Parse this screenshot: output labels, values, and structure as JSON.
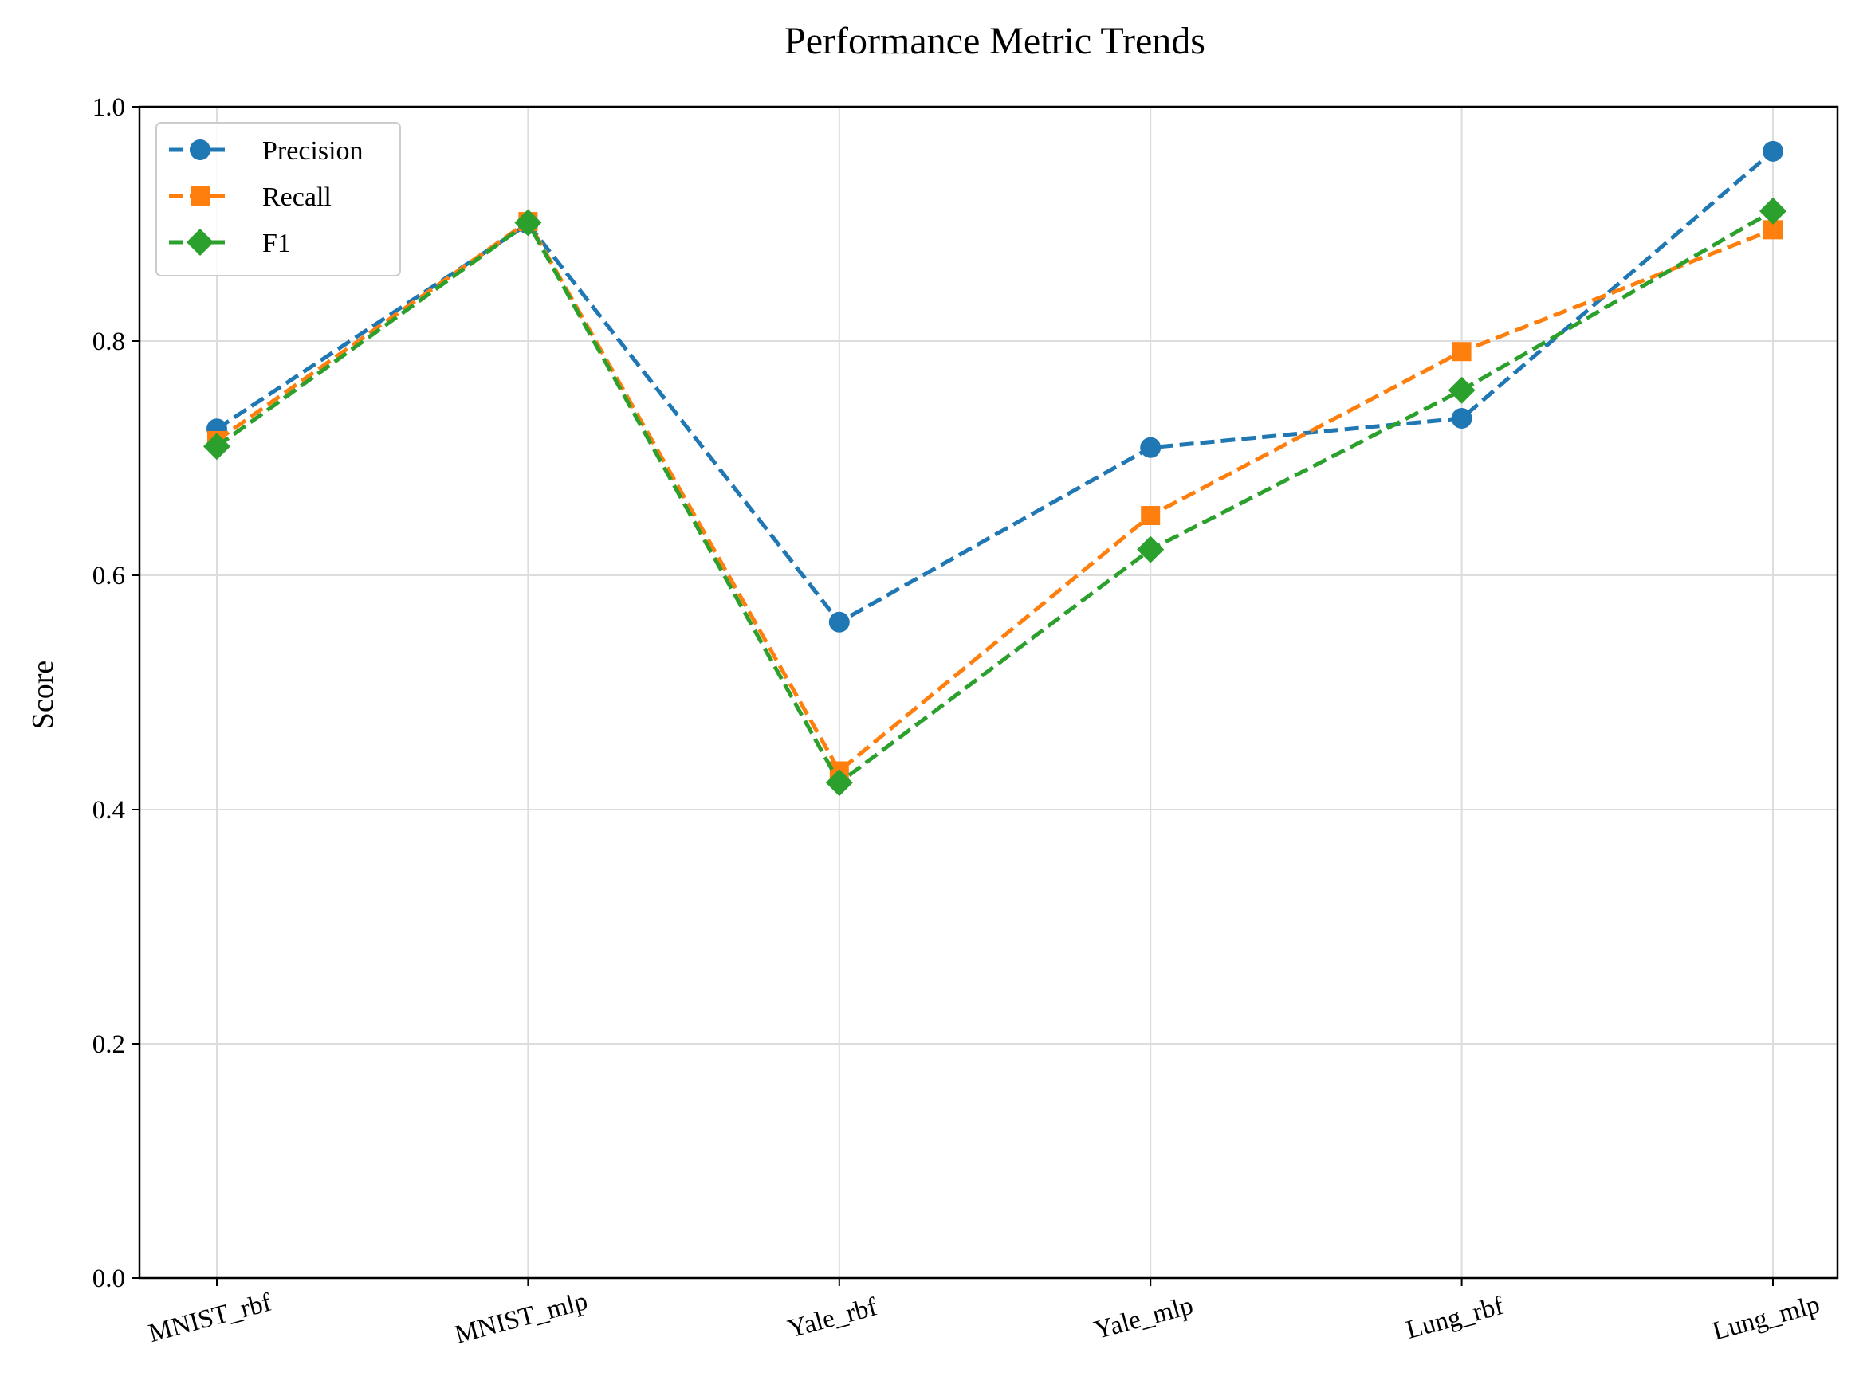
{
  "chart_data": {
    "type": "line",
    "title": "Performance Metric Trends",
    "xlabel": "",
    "ylabel": "Score",
    "categories": [
      "MNIST_rbf",
      "MNIST_mlp",
      "Yale_rbf",
      "Yale_mlp",
      "Lung_rbf",
      "Lung_mlp"
    ],
    "ylim": [
      0.0,
      1.0
    ],
    "yticks": [
      "0.0",
      "0.2",
      "0.4",
      "0.6",
      "0.8",
      "1.0"
    ],
    "grid": true,
    "legend_position": "top-left",
    "series": [
      {
        "name": "Precision",
        "values": [
          0.725,
          0.9,
          0.56,
          0.709,
          0.734,
          0.962
        ],
        "color": "#1f77b4",
        "marker": "circle",
        "linestyle": "dashed"
      },
      {
        "name": "Recall",
        "values": [
          0.715,
          0.902,
          0.433,
          0.651,
          0.791,
          0.895
        ],
        "color": "#ff7f0e",
        "marker": "square",
        "linestyle": "dashed"
      },
      {
        "name": "F1",
        "values": [
          0.71,
          0.901,
          0.423,
          0.622,
          0.758,
          0.911
        ],
        "color": "#2ca02c",
        "marker": "diamond",
        "linestyle": "dashed"
      }
    ]
  }
}
